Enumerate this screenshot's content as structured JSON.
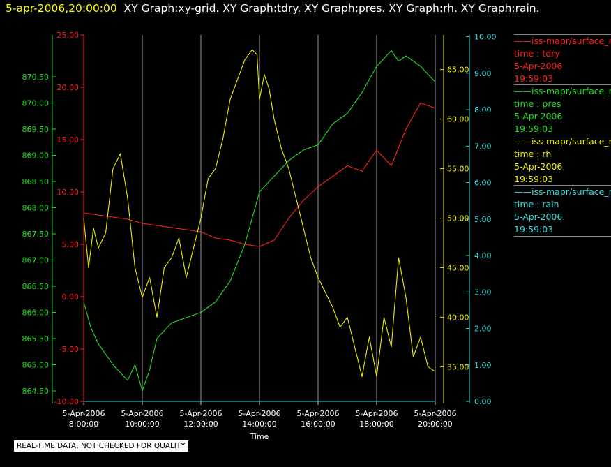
{
  "title": {
    "timestamp": "5-apr-2006,20:00:00",
    "graphs": "XY Graph:xy-grid.  XY Graph:tdry.  XY Graph:pres.  XY Graph:rh.  XY Graph:rain."
  },
  "notice": "REAL-TIME DATA, NOT CHECKED FOR QUALITY",
  "legend": [
    {
      "source": "——iss-mapr/surface_m",
      "var": "time : tdry",
      "date": "5-Apr-2006",
      "time": "19:59:03",
      "color": "#ff2020"
    },
    {
      "source": "——iss-mapr/surface_m",
      "var": "time : pres",
      "date": "5-Apr-2006",
      "time": "19:59:03",
      "color": "#22dd22"
    },
    {
      "source": "——iss-mapr/surface_m",
      "var": "time : rh",
      "date": "5-Apr-2006",
      "time": "19:59:03",
      "color": "#eeee00"
    },
    {
      "source": "——iss-mapr/surface_m",
      "var": "time : rain",
      "date": "5-Apr-2006",
      "time": "19:59:03",
      "color": "#33dddd"
    }
  ],
  "chart_data": {
    "type": "line",
    "xlabel": "Time",
    "x_ticks": [
      {
        "date": "5-Apr-2006",
        "time": "8:00:00"
      },
      {
        "date": "5-Apr-2006",
        "time": "10:00:00"
      },
      {
        "date": "5-Apr-2006",
        "time": "12:00:00"
      },
      {
        "date": "5-Apr-2006",
        "time": "14:00:00"
      },
      {
        "date": "5-Apr-2006",
        "time": "16:00:00"
      },
      {
        "date": "5-Apr-2006",
        "time": "18:00:00"
      },
      {
        "date": "5-Apr-2006",
        "time": "20:00:00"
      }
    ],
    "xlim": [
      "08:00",
      "20:00"
    ],
    "grid": "vertical",
    "axes": {
      "pres": {
        "ticks": [
          "864.50",
          "865.00",
          "865.50",
          "866.00",
          "866.50",
          "867.00",
          "867.50",
          "868.00",
          "868.50",
          "869.00",
          "869.50",
          "870.00",
          "870.50"
        ],
        "ylim": [
          864.3,
          871.3
        ],
        "color": "#22dd22"
      },
      "tdry": {
        "ticks": [
          "-10.00",
          "-5.00",
          "0.00",
          "5.00",
          "10.00",
          "15.00",
          "20.00",
          "25.00"
        ],
        "ylim": [
          -10,
          25
        ],
        "color": "#ff2020"
      },
      "rh": {
        "ticks": [
          "35.00",
          "40.00",
          "45.00",
          "50.00",
          "55.00",
          "60.00",
          "65.00"
        ],
        "ylim": [
          31.5,
          68.5
        ],
        "color": "#eeee00"
      },
      "rain": {
        "ticks": [
          "0.00",
          "1.00",
          "2.00",
          "3.00",
          "4.00",
          "5.00",
          "6.00",
          "7.00",
          "8.00",
          "9.00",
          "10.00"
        ],
        "ylim": [
          0,
          10.05
        ],
        "color": "#33dddd"
      }
    },
    "series": [
      {
        "name": "time : tdry",
        "axis": "tdry",
        "color": "#ff2020",
        "x": [
          "08:00",
          "08:30",
          "09:00",
          "09:30",
          "10:00",
          "10:30",
          "11:00",
          "11:30",
          "12:00",
          "12:30",
          "13:00",
          "13:30",
          "14:00",
          "14:30",
          "15:00",
          "15:30",
          "16:00",
          "16:30",
          "17:00",
          "17:30",
          "18:00",
          "18:30",
          "19:00",
          "19:30",
          "20:00"
        ],
        "values": [
          8.0,
          7.8,
          7.6,
          7.4,
          7.0,
          6.8,
          6.6,
          6.4,
          6.2,
          5.6,
          5.4,
          5.0,
          4.8,
          5.4,
          7.5,
          9.2,
          10.5,
          11.5,
          12.5,
          12.0,
          14.0,
          12.5,
          16.0,
          18.5,
          18.0
        ]
      },
      {
        "name": "time : pres",
        "axis": "pres",
        "color": "#22dd22",
        "x": [
          "08:00",
          "08:15",
          "08:30",
          "09:00",
          "09:30",
          "09:45",
          "10:00",
          "10:15",
          "10:30",
          "11:00",
          "11:30",
          "12:00",
          "12:30",
          "13:00",
          "13:30",
          "13:45",
          "14:00",
          "14:30",
          "15:00",
          "15:30",
          "16:00",
          "16:30",
          "17:00",
          "17:30",
          "18:00",
          "18:30",
          "18:45",
          "19:00",
          "19:30",
          "20:00"
        ],
        "values": [
          866.2,
          865.7,
          865.4,
          865.0,
          864.7,
          865.0,
          864.5,
          864.9,
          865.5,
          865.8,
          865.9,
          866.0,
          866.2,
          866.6,
          867.3,
          867.8,
          868.3,
          868.6,
          868.9,
          869.1,
          869.2,
          869.6,
          869.8,
          870.2,
          870.7,
          871.0,
          870.8,
          870.9,
          870.7,
          870.4
        ]
      },
      {
        "name": "time : rh",
        "axis": "rh",
        "color": "#eeee00",
        "x": [
          "08:00",
          "08:10",
          "08:20",
          "08:30",
          "08:45",
          "09:00",
          "09:15",
          "09:30",
          "09:45",
          "10:00",
          "10:15",
          "10:30",
          "10:45",
          "11:00",
          "11:15",
          "11:30",
          "11:45",
          "12:00",
          "12:15",
          "12:30",
          "12:45",
          "13:00",
          "13:15",
          "13:30",
          "13:45",
          "13:55",
          "14:00",
          "14:10",
          "14:20",
          "14:30",
          "14:45",
          "15:00",
          "15:15",
          "15:30",
          "15:45",
          "16:00",
          "16:15",
          "16:30",
          "16:45",
          "17:00",
          "17:15",
          "17:30",
          "17:45",
          "18:00",
          "18:15",
          "18:30",
          "18:45",
          "19:00",
          "19:15",
          "19:30",
          "19:45",
          "20:00"
        ],
        "values": [
          50.0,
          45.0,
          49.0,
          47.0,
          48.5,
          55.0,
          56.5,
          52.0,
          45.0,
          42.0,
          44.0,
          40.0,
          45.0,
          46.0,
          48.0,
          44.0,
          47.0,
          50.0,
          54.0,
          55.0,
          58.0,
          62.0,
          64.0,
          66.0,
          67.0,
          66.5,
          62.0,
          64.5,
          63.0,
          60.0,
          57.0,
          55.0,
          52.0,
          49.0,
          46.0,
          44.0,
          42.5,
          41.0,
          39.0,
          40.0,
          37.0,
          34.0,
          38.0,
          34.0,
          40.0,
          37.0,
          46.0,
          42.0,
          36.0,
          38.0,
          35.0,
          34.5
        ]
      },
      {
        "name": "time : rain",
        "axis": "rain",
        "color": "#33dddd",
        "x": [
          "08:00",
          "20:00"
        ],
        "values": [
          0.0,
          0.0
        ]
      }
    ]
  }
}
